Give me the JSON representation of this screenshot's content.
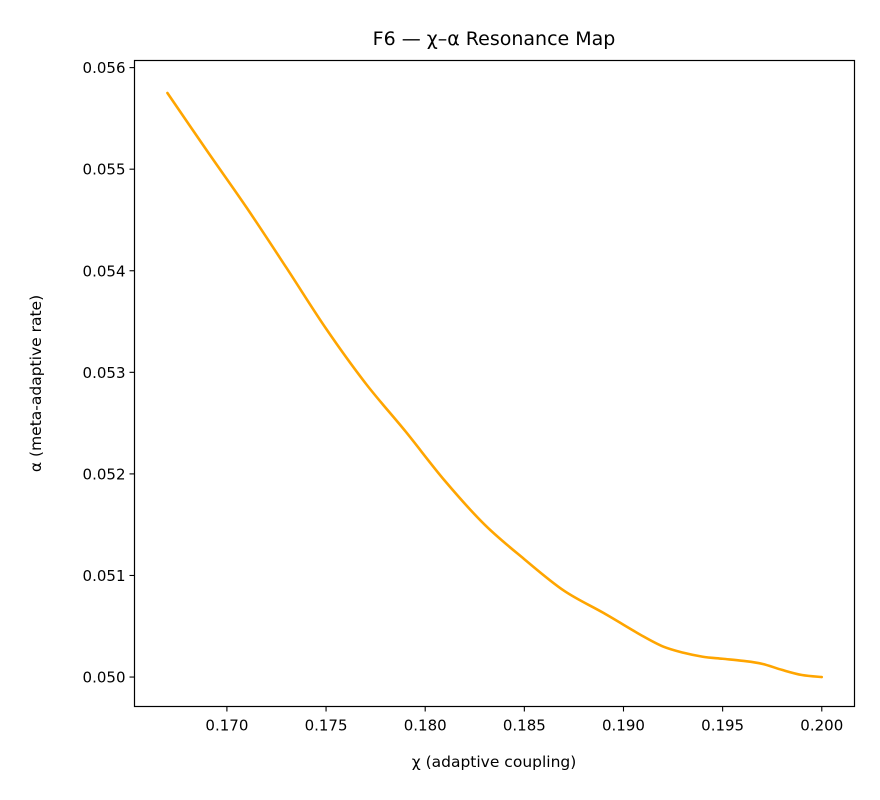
{
  "chart_data": {
    "type": "line",
    "title": "F6 — χ–α Resonance Map",
    "xlabel": "χ (adaptive coupling)",
    "ylabel": "α (meta-adaptive rate)",
    "xlim": [
      0.16534,
      0.20165
    ],
    "ylim": [
      0.04971,
      0.05607
    ],
    "grid": false,
    "legend": "none",
    "x_ticks": [
      0.17,
      0.175,
      0.18,
      0.185,
      0.19,
      0.195,
      0.2
    ],
    "x_tick_labels": [
      "0.170",
      "0.175",
      "0.180",
      "0.185",
      "0.190",
      "0.195",
      "0.200"
    ],
    "y_ticks": [
      0.05,
      0.051,
      0.052,
      0.053,
      0.054,
      0.055,
      0.056
    ],
    "y_tick_labels": [
      "0.050",
      "0.051",
      "0.052",
      "0.053",
      "0.054",
      "0.055",
      "0.056"
    ],
    "series": [
      {
        "color": "#FFA500",
        "x": [
          0.167,
          0.169,
          0.171,
          0.173,
          0.175,
          0.177,
          0.179,
          0.181,
          0.183,
          0.185,
          0.187,
          0.189,
          0.191,
          0.192,
          0.193,
          0.194,
          0.195,
          0.196,
          0.197,
          0.198,
          0.199,
          0.2
        ],
        "y": [
          0.05575,
          0.05518,
          0.05462,
          0.05403,
          0.05343,
          0.05289,
          0.05242,
          0.05193,
          0.0515,
          0.05116,
          0.05085,
          0.05063,
          0.0504,
          0.0503,
          0.05024,
          0.0502,
          0.05018,
          0.05016,
          0.05013,
          0.05007,
          0.05002,
          0.05
        ]
      }
    ]
  }
}
